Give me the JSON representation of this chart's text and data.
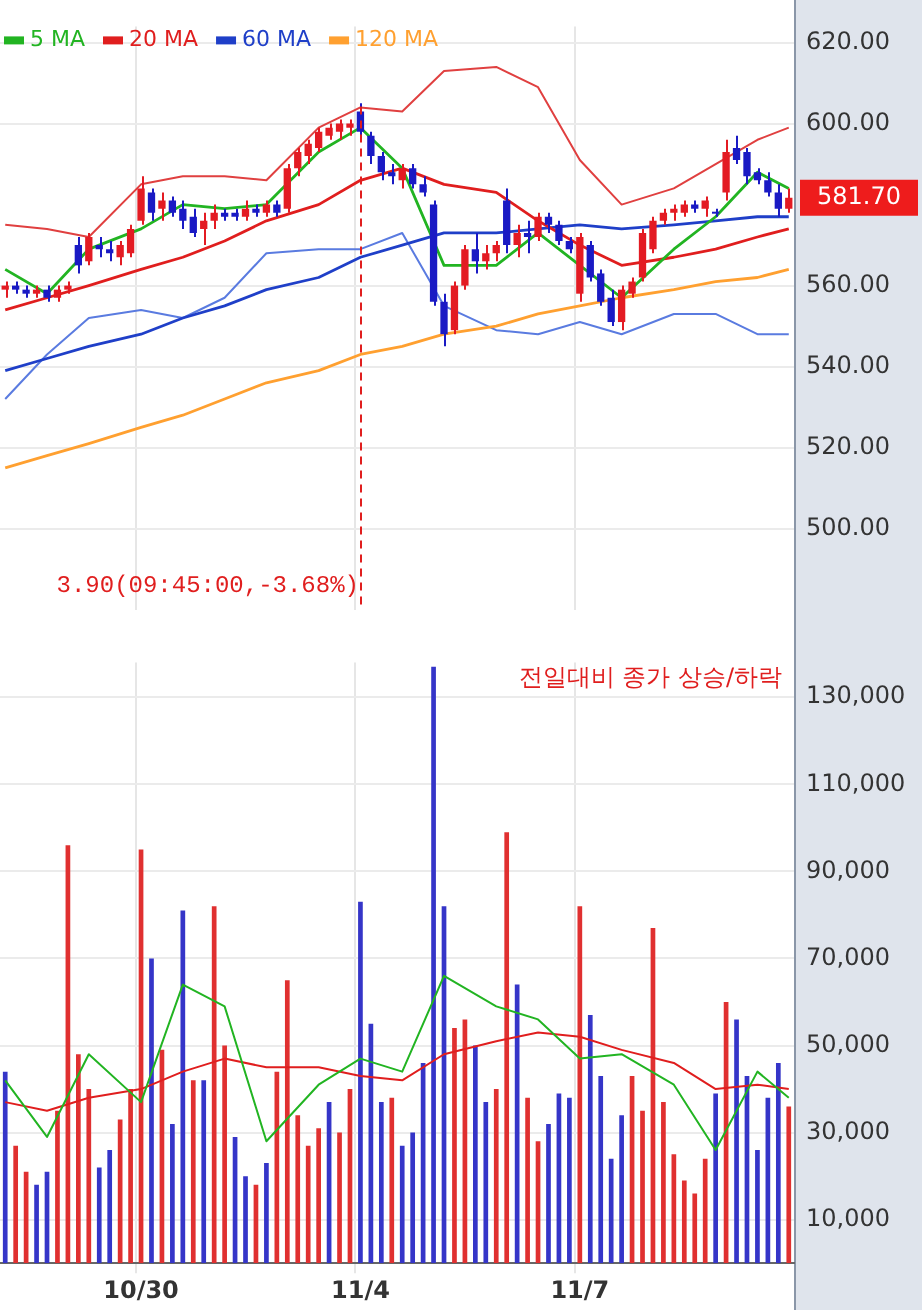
{
  "chart_data": [
    {
      "type": "candlestick",
      "categories": [
        null,
        null,
        null,
        null,
        null,
        null,
        null,
        null,
        null,
        null,
        null,
        null,
        null,
        "10/30",
        null,
        null,
        null,
        null,
        null,
        null,
        null,
        null,
        null,
        null,
        null,
        null,
        null,
        null,
        null,
        null,
        null,
        null,
        null,
        null,
        "11/4",
        null,
        null,
        null,
        null,
        null,
        null,
        null,
        null,
        null,
        null,
        null,
        null,
        null,
        null,
        null,
        null,
        null,
        null,
        null,
        null,
        "11/7",
        null,
        null,
        null,
        null,
        null,
        null,
        null,
        null,
        null,
        null,
        null,
        null,
        null,
        null,
        null,
        null,
        null,
        null,
        null,
        null
      ],
      "ohlc": [
        [
          559,
          561,
          557,
          560
        ],
        [
          560,
          561,
          558,
          559
        ],
        [
          559,
          560,
          557,
          558
        ],
        [
          558,
          560,
          557,
          559
        ],
        [
          559,
          560,
          556,
          557
        ],
        [
          557,
          560,
          556,
          559
        ],
        [
          559,
          561,
          558,
          560
        ],
        [
          570,
          572,
          563,
          565
        ],
        [
          566,
          573,
          565,
          572
        ],
        [
          570,
          572,
          567,
          569
        ],
        [
          569,
          571,
          566,
          568
        ],
        [
          567,
          571,
          565,
          570
        ],
        [
          568,
          575,
          567,
          574
        ],
        [
          576,
          587,
          575,
          584
        ],
        [
          583,
          584,
          576,
          578
        ],
        [
          579,
          583,
          576,
          581
        ],
        [
          581,
          582,
          577,
          578
        ],
        [
          579,
          581,
          574,
          576
        ],
        [
          577,
          579,
          572,
          573
        ],
        [
          574,
          578,
          570,
          576
        ],
        [
          576,
          580,
          574,
          578
        ],
        [
          578,
          579,
          576,
          577
        ],
        [
          578,
          579,
          576,
          577
        ],
        [
          577,
          581,
          576,
          579
        ],
        [
          579,
          580,
          577,
          578
        ],
        [
          578,
          581,
          577,
          580
        ],
        [
          580,
          581,
          577,
          578
        ],
        [
          579,
          590,
          578,
          589
        ],
        [
          589,
          594,
          587,
          593
        ],
        [
          592,
          596,
          590,
          595
        ],
        [
          594,
          599,
          593,
          598
        ],
        [
          597,
          600,
          596,
          599
        ],
        [
          598,
          601,
          596,
          600
        ],
        [
          599,
          601,
          597,
          600
        ],
        [
          603,
          605,
          596,
          598
        ],
        [
          597,
          598,
          590,
          592
        ],
        [
          592,
          593,
          586,
          588
        ],
        [
          588,
          590,
          585,
          587
        ],
        [
          586,
          590,
          584,
          589
        ],
        [
          589,
          590,
          584,
          585
        ],
        [
          585,
          587,
          582,
          583
        ],
        [
          580,
          581,
          555,
          556
        ],
        [
          556,
          558,
          545,
          548
        ],
        [
          549,
          561,
          548,
          560
        ],
        [
          560,
          570,
          559,
          569
        ],
        [
          569,
          573,
          563,
          566
        ],
        [
          566,
          570,
          564,
          568
        ],
        [
          568,
          571,
          566,
          570
        ],
        [
          581,
          584,
          568,
          570
        ],
        [
          570,
          575,
          567,
          573
        ],
        [
          573,
          576,
          568,
          572
        ],
        [
          572,
          578,
          571,
          577
        ],
        [
          577,
          578,
          573,
          575
        ],
        [
          575,
          576,
          570,
          571
        ],
        [
          571,
          572,
          568,
          569
        ],
        [
          558,
          573,
          556,
          572
        ],
        [
          570,
          571,
          561,
          562
        ],
        [
          563,
          564,
          555,
          556
        ],
        [
          557,
          559,
          550,
          551
        ],
        [
          551,
          560,
          549,
          559
        ],
        [
          558,
          562,
          557,
          561
        ],
        [
          562,
          574,
          561,
          573
        ],
        [
          569,
          577,
          568,
          576
        ],
        [
          576,
          579,
          575,
          578
        ],
        [
          578,
          580,
          576,
          579
        ],
        [
          578,
          581,
          577,
          580
        ],
        [
          580,
          581,
          578,
          579
        ],
        [
          579,
          582,
          577,
          581
        ],
        [
          578,
          579,
          577,
          578
        ],
        [
          583,
          596,
          581,
          593
        ],
        [
          594,
          597,
          590,
          591
        ],
        [
          593,
          594,
          585,
          587
        ],
        [
          588,
          589,
          585,
          586
        ],
        [
          586,
          588,
          582,
          583
        ],
        [
          583,
          585,
          577,
          579
        ],
        [
          579,
          584,
          578,
          581.7
        ]
      ],
      "colors": [
        "#e31b23",
        "#1a1ac4",
        "#1a1ac4",
        "#e31b23",
        "#1a1ac4",
        "#e31b23",
        "#e31b23",
        "#1a1ac4",
        "#e31b23",
        "#1a1ac4",
        "#1a1ac4",
        "#e31b23",
        "#e31b23",
        "#e31b23",
        "#1a1ac4",
        "#e31b23",
        "#1a1ac4",
        "#1a1ac4",
        "#1a1ac4",
        "#e31b23",
        "#e31b23",
        "#1a1ac4",
        "#1a1ac4",
        "#e31b23",
        "#1a1ac4",
        "#e31b23",
        "#1a1ac4",
        "#e31b23",
        "#e31b23",
        "#e31b23",
        "#e31b23",
        "#e31b23",
        "#e31b23",
        "#e31b23",
        "#1a1ac4",
        "#1a1ac4",
        "#1a1ac4",
        "#1a1ac4",
        "#e31b23",
        "#1a1ac4",
        "#1a1ac4",
        "#1a1ac4",
        "#1a1ac4",
        "#e31b23",
        "#e31b23",
        "#1a1ac4",
        "#e31b23",
        "#e31b23",
        "#1a1ac4",
        "#e31b23",
        "#1a1ac4",
        "#e31b23",
        "#1a1ac4",
        "#1a1ac4",
        "#1a1ac4",
        "#e31b23",
        "#1a1ac4",
        "#1a1ac4",
        "#1a1ac4",
        "#e31b23",
        "#e31b23",
        "#e31b23",
        "#e31b23",
        "#e31b23",
        "#e31b23",
        "#e31b23",
        "#1a1ac4",
        "#e31b23",
        "#1a1ac4",
        "#e31b23",
        "#1a1ac4",
        "#1a1ac4",
        "#1a1ac4",
        "#1a1ac4",
        "#1a1ac4",
        "#e31b23"
      ],
      "series": [
        {
          "type": "line",
          "name": "5 MA",
          "color": "#22b422",
          "values": [
            564,
            null,
            null,
            null,
            558,
            null,
            null,
            null,
            569,
            null,
            null,
            null,
            null,
            574,
            null,
            null,
            null,
            580,
            null,
            null,
            null,
            579,
            null,
            null,
            null,
            580,
            null,
            null,
            null,
            null,
            593,
            null,
            null,
            null,
            599,
            null,
            null,
            null,
            589,
            null,
            null,
            null,
            565,
            null,
            null,
            null,
            null,
            565,
            null,
            null,
            null,
            573,
            null,
            null,
            null,
            565,
            null,
            null,
            null,
            557,
            null,
            null,
            null,
            null,
            569,
            null,
            null,
            null,
            577,
            null,
            null,
            null,
            588,
            null,
            null,
            584
          ]
        },
        {
          "type": "line",
          "name": "20 MA",
          "color": "#e01e1e",
          "values": [
            554,
            null,
            null,
            null,
            557,
            null,
            null,
            null,
            560,
            null,
            null,
            null,
            null,
            564,
            null,
            null,
            null,
            567,
            null,
            null,
            null,
            571,
            null,
            null,
            null,
            576,
            null,
            null,
            null,
            null,
            580,
            null,
            null,
            null,
            586,
            null,
            null,
            null,
            589,
            null,
            null,
            null,
            585,
            null,
            null,
            null,
            null,
            583,
            null,
            null,
            null,
            576,
            null,
            null,
            null,
            570,
            null,
            null,
            null,
            565,
            null,
            null,
            null,
            null,
            567,
            null,
            null,
            null,
            569,
            null,
            null,
            null,
            572,
            null,
            null,
            574
          ]
        },
        {
          "type": "line",
          "name": "60 MA",
          "color": "#1f3fc8",
          "values": [
            539,
            null,
            null,
            null,
            542,
            null,
            null,
            null,
            545,
            null,
            null,
            null,
            null,
            548,
            null,
            null,
            null,
            552,
            null,
            null,
            null,
            555,
            null,
            null,
            null,
            559,
            null,
            null,
            null,
            null,
            562,
            null,
            null,
            null,
            567,
            null,
            null,
            null,
            570,
            null,
            null,
            null,
            573,
            null,
            null,
            null,
            null,
            573,
            null,
            null,
            null,
            574,
            null,
            null,
            null,
            575,
            null,
            null,
            null,
            574,
            null,
            null,
            null,
            null,
            575,
            null,
            null,
            null,
            576,
            null,
            null,
            null,
            577,
            null,
            null,
            577
          ]
        },
        {
          "type": "line",
          "name": "120 MA",
          "color": "#ffa030",
          "values": [
            515,
            null,
            null,
            null,
            518,
            null,
            null,
            null,
            521,
            null,
            null,
            null,
            null,
            525,
            null,
            null,
            null,
            528,
            null,
            null,
            null,
            532,
            null,
            null,
            null,
            536,
            null,
            null,
            null,
            null,
            539,
            null,
            null,
            null,
            543,
            null,
            null,
            null,
            545,
            null,
            null,
            null,
            548,
            null,
            null,
            null,
            null,
            550,
            null,
            null,
            null,
            553,
            null,
            null,
            null,
            555,
            null,
            null,
            null,
            557,
            null,
            null,
            null,
            null,
            559,
            null,
            null,
            null,
            561,
            null,
            null,
            null,
            562,
            null,
            null,
            564
          ]
        },
        {
          "type": "line",
          "color": "#e04040",
          "values": [
            575,
            null,
            null,
            null,
            574,
            null,
            null,
            null,
            572,
            null,
            null,
            null,
            null,
            585,
            null,
            null,
            null,
            587,
            null,
            null,
            null,
            587,
            null,
            null,
            null,
            586,
            null,
            null,
            null,
            null,
            599,
            null,
            null,
            null,
            604,
            null,
            null,
            null,
            603,
            null,
            null,
            null,
            613,
            null,
            null,
            null,
            null,
            614,
            null,
            null,
            null,
            609,
            null,
            null,
            null,
            591,
            null,
            null,
            null,
            580,
            null,
            null,
            null,
            null,
            584,
            null,
            null,
            null,
            590,
            null,
            null,
            null,
            596,
            null,
            null,
            599
          ]
        },
        {
          "type": "line",
          "color": "#5a7be0",
          "values": [
            532,
            null,
            null,
            null,
            543,
            null,
            null,
            null,
            552,
            null,
            null,
            null,
            null,
            554,
            null,
            null,
            null,
            552,
            null,
            null,
            null,
            557,
            null,
            null,
            null,
            568,
            null,
            null,
            null,
            null,
            569,
            null,
            null,
            null,
            569,
            null,
            null,
            null,
            573,
            null,
            null,
            null,
            555,
            null,
            null,
            null,
            null,
            549,
            null,
            null,
            null,
            548,
            null,
            null,
            null,
            551,
            null,
            null,
            null,
            548,
            null,
            null,
            null,
            null,
            553,
            null,
            null,
            null,
            553,
            null,
            null,
            null,
            548,
            null,
            null,
            548
          ]
        }
      ],
      "ylim": [
        480,
        624
      ],
      "yticks": [
        {
          "value": 500,
          "label": "500.00"
        },
        {
          "value": 520,
          "label": "520.00"
        },
        {
          "value": 540,
          "label": "540.00"
        },
        {
          "value": 560,
          "label": "560.00"
        },
        {
          "value": 600,
          "label": "600.00"
        },
        {
          "value": 620,
          "label": "620.00"
        }
      ],
      "grid": true,
      "legend": "top left",
      "tick_labels": "y",
      "ref_lines": [
        {
          "axis": "x",
          "value": "11/4",
          "label": "3.90(09:45:00,-3.68%)",
          "color": "#e01e1e",
          "line_style": "dashed"
        }
      ],
      "annotations": [
        "581.70"
      ]
    },
    {
      "type": "bar",
      "categories": [
        null,
        null,
        null,
        null,
        null,
        null,
        null,
        null,
        null,
        null,
        null,
        null,
        null,
        "10/30",
        null,
        null,
        null,
        null,
        null,
        null,
        null,
        null,
        null,
        null,
        null,
        null,
        null,
        null,
        null,
        null,
        null,
        null,
        null,
        null,
        "11/4",
        null,
        null,
        null,
        null,
        null,
        null,
        null,
        null,
        null,
        null,
        null,
        null,
        null,
        null,
        null,
        null,
        null,
        null,
        null,
        null,
        "11/7",
        null,
        null,
        null,
        null,
        null,
        null,
        null,
        null,
        null,
        null,
        null,
        null,
        null,
        null,
        null,
        null,
        null,
        null,
        null,
        null
      ],
      "values": [
        44000,
        27000,
        21000,
        18000,
        21000,
        35000,
        96000,
        48000,
        40000,
        22000,
        26000,
        33000,
        40000,
        95000,
        70000,
        49000,
        32000,
        81000,
        42000,
        42000,
        82000,
        50000,
        29000,
        20000,
        18000,
        23000,
        44000,
        65000,
        34000,
        27000,
        31000,
        37000,
        30000,
        40000,
        83000,
        55000,
        37000,
        38000,
        27000,
        30000,
        46000,
        137000,
        82000,
        54000,
        56000,
        50000,
        37000,
        40000,
        99000,
        64000,
        38000,
        28000,
        32000,
        39000,
        38000,
        82000,
        57000,
        43000,
        24000,
        34000,
        43000,
        35000,
        77000,
        37000,
        25000,
        19000,
        16000,
        24000,
        39000,
        60000,
        56000,
        43000,
        26000,
        38000,
        46000,
        36000
      ],
      "colors": [
        "#3535c8",
        "#e03030",
        "#e03030",
        "#3535c8",
        "#3535c8",
        "#e03030",
        "#e03030",
        "#e03030",
        "#e03030",
        "#3535c8",
        "#3535c8",
        "#e03030",
        "#e03030",
        "#e03030",
        "#3535c8",
        "#e03030",
        "#3535c8",
        "#3535c8",
        "#e03030",
        "#3535c8",
        "#e03030",
        "#e03030",
        "#3535c8",
        "#3535c8",
        "#e03030",
        "#3535c8",
        "#e03030",
        "#e03030",
        "#e03030",
        "#e03030",
        "#e03030",
        "#3535c8",
        "#e03030",
        "#e03030",
        "#3535c8",
        "#3535c8",
        "#3535c8",
        "#e03030",
        "#3535c8",
        "#3535c8",
        "#3535c8",
        "#3535c8",
        "#3535c8",
        "#e03030",
        "#e03030",
        "#3535c8",
        "#3535c8",
        "#e03030",
        "#e03030",
        "#3535c8",
        "#e03030",
        "#e03030",
        "#3535c8",
        "#3535c8",
        "#3535c8",
        "#e03030",
        "#3535c8",
        "#3535c8",
        "#3535c8",
        "#3535c8",
        "#e03030",
        "#e03030",
        "#e03030",
        "#e03030",
        "#e03030",
        "#e03030",
        "#e03030",
        "#e03030",
        "#3535c8",
        "#e03030",
        "#3535c8",
        "#3535c8",
        "#3535c8",
        "#3535c8",
        "#3535c8",
        "#e03030"
      ],
      "series": [
        {
          "type": "line",
          "color": "#22b422",
          "values": [
            42000,
            null,
            null,
            null,
            29000,
            null,
            null,
            null,
            48000,
            null,
            null,
            null,
            null,
            37000,
            null,
            null,
            null,
            64000,
            null,
            null,
            null,
            59000,
            null,
            null,
            null,
            28000,
            null,
            null,
            null,
            null,
            41000,
            null,
            null,
            null,
            47000,
            null,
            null,
            null,
            44000,
            null,
            null,
            null,
            66000,
            null,
            null,
            null,
            null,
            59000,
            null,
            null,
            null,
            56000,
            null,
            null,
            null,
            47000,
            null,
            null,
            null,
            48000,
            null,
            null,
            null,
            null,
            41000,
            null,
            null,
            null,
            26000,
            null,
            null,
            null,
            44000,
            null,
            null,
            38000
          ]
        },
        {
          "type": "line",
          "color": "#e01e1e",
          "values": [
            37000,
            null,
            null,
            null,
            35000,
            null,
            null,
            null,
            38000,
            null,
            null,
            null,
            null,
            40000,
            null,
            null,
            null,
            44000,
            null,
            null,
            null,
            47000,
            null,
            null,
            null,
            45000,
            null,
            null,
            null,
            null,
            45000,
            null,
            null,
            null,
            43000,
            null,
            null,
            null,
            42000,
            null,
            null,
            null,
            48000,
            null,
            null,
            null,
            null,
            51000,
            null,
            null,
            null,
            53000,
            null,
            null,
            null,
            52000,
            null,
            null,
            null,
            49000,
            null,
            null,
            null,
            null,
            46000,
            null,
            null,
            null,
            40000,
            null,
            null,
            null,
            41000,
            null,
            null,
            40000
          ]
        }
      ],
      "ylim": [
        0,
        138000
      ],
      "yticks": [
        {
          "value": 10000,
          "label": "10,000"
        },
        {
          "value": 30000,
          "label": "30,000"
        },
        {
          "value": 50000,
          "label": "50,000"
        },
        {
          "value": 70000,
          "label": "70,000"
        },
        {
          "value": 90000,
          "label": "90,000"
        },
        {
          "value": 110000,
          "label": "110,000"
        },
        {
          "value": 130000,
          "label": "130,000"
        }
      ],
      "grid": true,
      "annotations": [
        "전일대비 종가 상승/하락"
      ]
    }
  ]
}
